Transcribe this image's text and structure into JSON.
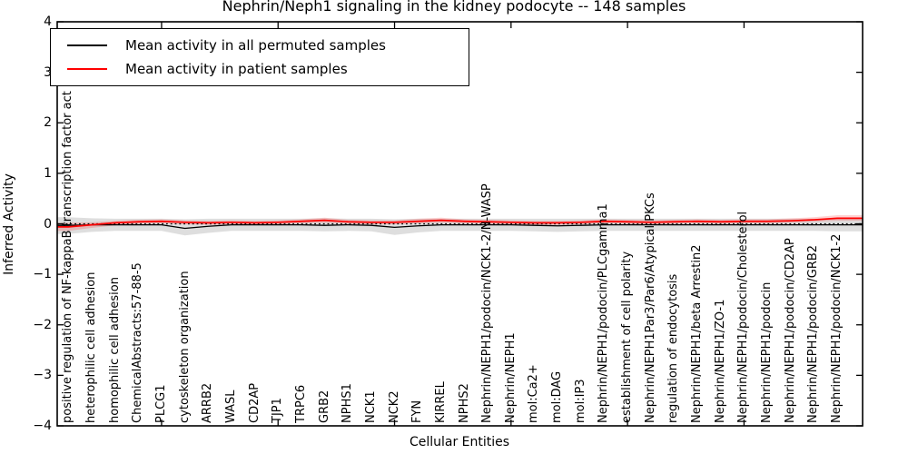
{
  "figure": {
    "title": "Nephrin/Neph1 signaling in the kidney podocyte -- 148 samples",
    "xlabel": "Cellular Entities",
    "ylabel": "Inferred Activity"
  },
  "legend": {
    "items": [
      {
        "label": "Mean activity in all permuted samples",
        "color": "#000000"
      },
      {
        "label": "Mean activity in patient samples",
        "color": "#ff0000"
      }
    ]
  },
  "chart_data": {
    "type": "line",
    "title": "Nephrin/Neph1 signaling in the kidney podocyte -- 148 samples",
    "xlabel": "Cellular Entities",
    "ylabel": "Inferred Activity",
    "ylim": [
      -4,
      4
    ],
    "yticks": [
      4,
      3,
      2,
      1,
      0,
      -1,
      -2,
      -3,
      -4
    ],
    "xticks_positions": [
      5,
      10,
      15,
      20,
      25,
      30
    ],
    "grid": false,
    "zero_line": "black dotted",
    "legend_position": "upper left",
    "categories": [
      "positive regulation of NF-kappaB transcription factor act",
      "heterophilic cell adhesion",
      "homophilic cell adhesion",
      "ChemicalAbstracts:57-88-5",
      "PLCG1",
      "cytoskeleton organization",
      "ARRB2",
      "WASL",
      "CD2AP",
      "TJP1",
      "TRPC6",
      "GRB2",
      "NPHS1",
      "NCK1",
      "NCK2",
      "FYN",
      "KIRREL",
      "NPHS2",
      "Nephrin/NEPH1/podocin/NCK1-2/N-WASP",
      "Nephrin/NEPH1",
      "mol:Ca2+",
      "mol:DAG",
      "mol:IP3",
      "Nephrin/NEPH1/podocin/PLCgamma1",
      "establishment of cell polarity",
      "Nephrin/NEPH1Par3/Par6/Atypical PKCs",
      "regulation of endocytosis",
      "Nephrin/NEPH1/beta Arrestin2",
      "Nephrin/NEPH1/ZO-1",
      "Nephrin/NEPH1/podocin/Cholesterol",
      "Nephrin/NEPH1/podocin",
      "Nephrin/NEPH1/podocin/CD2AP",
      "Nephrin/NEPH1/podocin/GRB2",
      "Nephrin/NEPH1/podocin/NCK1-2"
    ],
    "series": [
      {
        "name": "Mean activity in all permuted samples",
        "color": "#000000",
        "values": [
          -0.03,
          -0.02,
          -0.02,
          -0.02,
          -0.02,
          -0.09,
          -0.05,
          -0.02,
          -0.02,
          -0.02,
          -0.02,
          -0.03,
          -0.02,
          -0.03,
          -0.07,
          -0.04,
          -0.02,
          -0.02,
          -0.02,
          -0.02,
          -0.03,
          -0.04,
          -0.03,
          -0.02,
          -0.02,
          -0.02,
          -0.02,
          -0.02,
          -0.02,
          -0.02,
          -0.02,
          -0.02,
          -0.02,
          -0.02
        ]
      },
      {
        "name": "Mean activity in patient samples",
        "color": "#ff0000",
        "values": [
          -0.06,
          -0.02,
          0.02,
          0.04,
          0.05,
          0.03,
          0.02,
          0.03,
          0.02,
          0.03,
          0.05,
          0.07,
          0.04,
          0.03,
          0.03,
          0.05,
          0.07,
          0.05,
          0.04,
          0.03,
          0.02,
          0.02,
          0.03,
          0.05,
          0.04,
          0.03,
          0.04,
          0.05,
          0.04,
          0.05,
          0.05,
          0.06,
          0.08,
          0.11
        ]
      }
    ],
    "bands": [
      {
        "name": "permuted-sample-range",
        "color": "rgba(0,0,0,0.13)",
        "upper": [
          0.13,
          0.11,
          0.1,
          0.1,
          0.1,
          0.09,
          0.1,
          0.1,
          0.1,
          0.1,
          0.1,
          0.11,
          0.1,
          0.1,
          0.09,
          0.1,
          0.1,
          0.1,
          0.1,
          0.1,
          0.1,
          0.1,
          0.1,
          0.1,
          0.1,
          0.1,
          0.1,
          0.1,
          0.1,
          0.1,
          0.1,
          0.1,
          0.1,
          0.1
        ],
        "lower": [
          -0.2,
          -0.16,
          -0.14,
          -0.14,
          -0.14,
          -0.23,
          -0.18,
          -0.14,
          -0.14,
          -0.14,
          -0.14,
          -0.15,
          -0.14,
          -0.15,
          -0.22,
          -0.17,
          -0.14,
          -0.14,
          -0.14,
          -0.14,
          -0.15,
          -0.16,
          -0.15,
          -0.14,
          -0.14,
          -0.14,
          -0.14,
          -0.14,
          -0.14,
          -0.14,
          -0.14,
          -0.14,
          -0.14,
          -0.15
        ]
      },
      {
        "name": "patient-sample-range",
        "color": "rgba(255,0,0,0.18)",
        "upper": [
          0.02,
          0.03,
          0.06,
          0.08,
          0.09,
          0.07,
          0.06,
          0.07,
          0.06,
          0.07,
          0.09,
          0.12,
          0.08,
          0.07,
          0.07,
          0.1,
          0.12,
          0.09,
          0.08,
          0.07,
          0.06,
          0.06,
          0.07,
          0.09,
          0.08,
          0.07,
          0.08,
          0.09,
          0.08,
          0.09,
          0.09,
          0.11,
          0.13,
          0.17
        ],
        "lower": [
          -0.14,
          -0.08,
          -0.03,
          0.0,
          0.01,
          -0.01,
          -0.02,
          -0.01,
          -0.02,
          -0.01,
          0.01,
          0.02,
          0.0,
          -0.01,
          -0.01,
          0.01,
          0.02,
          0.01,
          0.0,
          -0.01,
          -0.02,
          -0.02,
          -0.01,
          0.01,
          0.0,
          -0.01,
          0.0,
          0.01,
          0.0,
          0.01,
          0.01,
          0.02,
          0.04,
          0.06
        ]
      }
    ]
  }
}
